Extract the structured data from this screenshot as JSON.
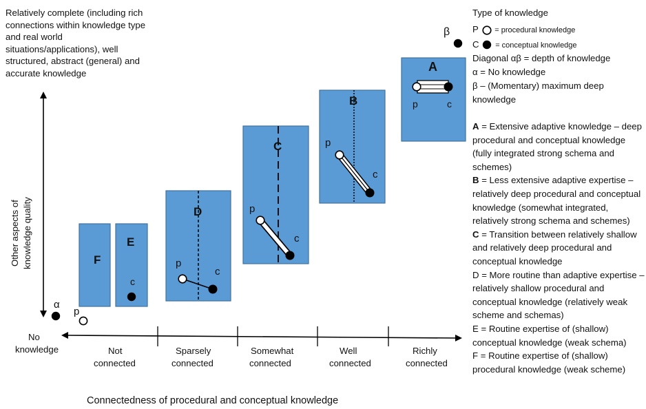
{
  "y_axis": {
    "top_note": "Relatively complete (including rich connections within knowledge type and real world situations/applications), well structured, abstract (general) and accurate knowledge",
    "label_line1": "Other aspects of",
    "label_line2": "knowledge quality"
  },
  "x_axis": {
    "title": "Connectedness of procedural and conceptual knowledge",
    "origin_label_1": "No",
    "origin_label_2": "knowledge",
    "categories": [
      {
        "line1": "Not",
        "line2": "connected"
      },
      {
        "line1": "Sparsely",
        "line2": "connected"
      },
      {
        "line1": "Somewhat",
        "line2": "connected"
      },
      {
        "line1": "Well",
        "line2": "connected"
      },
      {
        "line1": "Richly",
        "line2": "connected"
      }
    ]
  },
  "boxes": {
    "A": "A",
    "B": "B",
    "C": "C",
    "D": "D",
    "E": "E",
    "F": "F"
  },
  "point_labels": {
    "p": "p",
    "c": "c",
    "alpha": "α",
    "beta": "β"
  },
  "legend": {
    "title": "Type of knowledge",
    "p_prefix": "P",
    "p_text": "= procedural knowledge",
    "c_prefix": "C",
    "c_text": "= conceptual knowledge",
    "diagonal": "Diagonal αβ = depth of knowledge",
    "alpha_def": "α = No knowledge",
    "beta_def_1": "β – (Momentary) maximum deep",
    "beta_def_2": "knowledge"
  },
  "definitions": [
    {
      "key": "A",
      "text": " = Extensive adaptive knowledge – deep procedural and conceptual knowledge (fully integrated strong schema and schemes)"
    },
    {
      "key": "B",
      "text": " = Less extensive adaptive expertise – relatively deep procedural and conceptual knowledge (somewhat integrated, relatively strong schema and schemes)"
    },
    {
      "key": "C",
      "text": " = Transition between relatively shallow and relatively deep procedural and conceptual knowledge"
    },
    {
      "key": "",
      "text": "D = More routine than adaptive expertise – relatively shallow procedural and conceptual knowledge (relatively weak scheme and schemas)"
    },
    {
      "key": "",
      "text": "E = Routine expertise of (shallow) conceptual knowledge (weak schema)"
    },
    {
      "key": "",
      "text": "F = Routine expertise of (shallow) procedural knowledge (weak scheme)"
    }
  ],
  "colors": {
    "box_fill": "#5b9bd5",
    "box_stroke": "#41719c",
    "ink": "#000000"
  }
}
